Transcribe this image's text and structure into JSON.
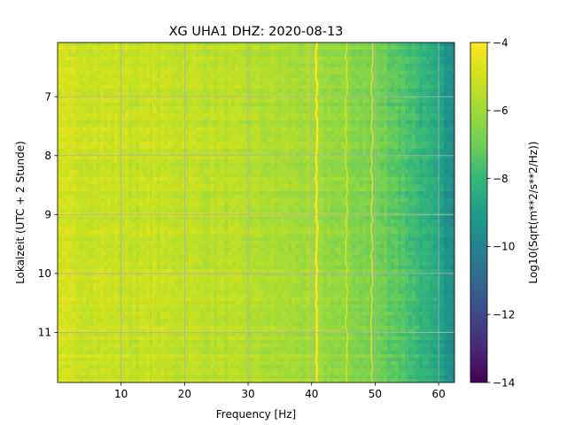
{
  "chart_data": {
    "type": "heatmap",
    "title": "XG UHA1  DHZ: 2020-08-13",
    "xlabel": "Frequency [Hz]",
    "ylabel": "Lokalzeit (UTC + 2 Stunde)",
    "colorbar_label": "Log10(Sqrt(m**2/s**2/Hz))",
    "colormap": "viridis",
    "xlim": [
      0,
      62.5
    ],
    "ylim": [
      11.85,
      6.08
    ],
    "y_inverted": true,
    "clim": [
      -14,
      -4
    ],
    "grid": true,
    "x_ticks": [
      10,
      20,
      30,
      40,
      50,
      60
    ],
    "y_ticks": [
      7,
      8,
      9,
      10,
      11
    ],
    "colorbar_ticks": [
      -4,
      -6,
      -8,
      -10,
      -12,
      -14
    ],
    "surface": {
      "description_values": [
        {
          "freq_hz": 0,
          "level": -5.0
        },
        {
          "freq_hz": 10,
          "level": -5.2
        },
        {
          "freq_hz": 20,
          "level": -5.3
        },
        {
          "freq_hz": 30,
          "level": -5.6
        },
        {
          "freq_hz": 40,
          "level": -6.0
        },
        {
          "freq_hz": 48,
          "level": -6.6
        },
        {
          "freq_hz": 53,
          "level": -7.2
        },
        {
          "freq_hz": 57,
          "level": -8.0
        },
        {
          "freq_hz": 60,
          "level": -8.8
        },
        {
          "freq_hz": 62.5,
          "level": -9.8
        }
      ],
      "lines": [
        {
          "freq_hz": 40.8,
          "level": -4.0
        },
        {
          "freq_hz": 15.0,
          "level": -4.8
        },
        {
          "freq_hz": 49.5,
          "level": -4.5
        },
        {
          "freq_hz": 45.5,
          "level": -4.7
        }
      ]
    }
  }
}
